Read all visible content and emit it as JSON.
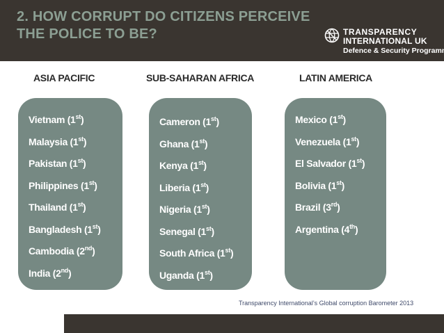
{
  "header": {
    "title_line1": "2. HOW CORRUPT DO CITIZENS PERCEIVE",
    "title_line2": "THE POLICE TO BE?",
    "logo": {
      "line1": "TRANSPARENCY",
      "line2": "INTERNATIONAL UK",
      "line3": "Defence & Security Programme"
    }
  },
  "columns": [
    {
      "heading": "ASIA PACIFIC",
      "items": [
        {
          "name": "Vietnam (1",
          "rank": "st",
          "close": ")"
        },
        {
          "name": "Malaysia (1",
          "rank": "st",
          "close": ")"
        },
        {
          "name": "Pakistan (1",
          "rank": "st",
          "close": ")"
        },
        {
          "name": "Philippines (1",
          "rank": "st",
          "close": ")"
        },
        {
          "name": "Thailand (1",
          "rank": "st",
          "close": ")"
        },
        {
          "name": "Bangladesh (1",
          "rank": "st",
          "close": ")"
        },
        {
          "name": "Cambodia (2",
          "rank": "nd",
          "close": ")"
        },
        {
          "name": "India (2",
          "rank": "nd",
          "close": ")"
        }
      ]
    },
    {
      "heading": "SUB-SAHARAN AFRICA",
      "items": [
        {
          "name": "Cameron (1",
          "rank": "st",
          "close": ")"
        },
        {
          "name": "Ghana (1",
          "rank": "st",
          "close": ")"
        },
        {
          "name": "Kenya (1",
          "rank": "st",
          "close": ")"
        },
        {
          "name": "Liberia (1",
          "rank": "st",
          "close": ")"
        },
        {
          "name": "Nigeria (1",
          "rank": "st",
          "close": ")"
        },
        {
          "name": "Senegal (1",
          "rank": "st",
          "close": ")"
        },
        {
          "name": "South Africa (1",
          "rank": "st",
          "close": ")"
        },
        {
          "name": "Uganda (1",
          "rank": "st",
          "close": ")"
        }
      ]
    },
    {
      "heading": "LATIN AMERICA",
      "items": [
        {
          "name": "Mexico (1",
          "rank": "st",
          "close": ")"
        },
        {
          "name": "Venezuela (1",
          "rank": "st",
          "close": ")"
        },
        {
          "name": "El Salvador (1",
          "rank": "st",
          "close": ")"
        },
        {
          "name": "Bolivia (1",
          "rank": "st",
          "close": ")"
        },
        {
          "name": "Brazil (3",
          "rank": "rd",
          "close": ")"
        },
        {
          "name": "Argentina (4",
          "rank": "th",
          "close": ")"
        }
      ]
    }
  ],
  "source": "Transparency International’s Global corruption Barometer 2013"
}
